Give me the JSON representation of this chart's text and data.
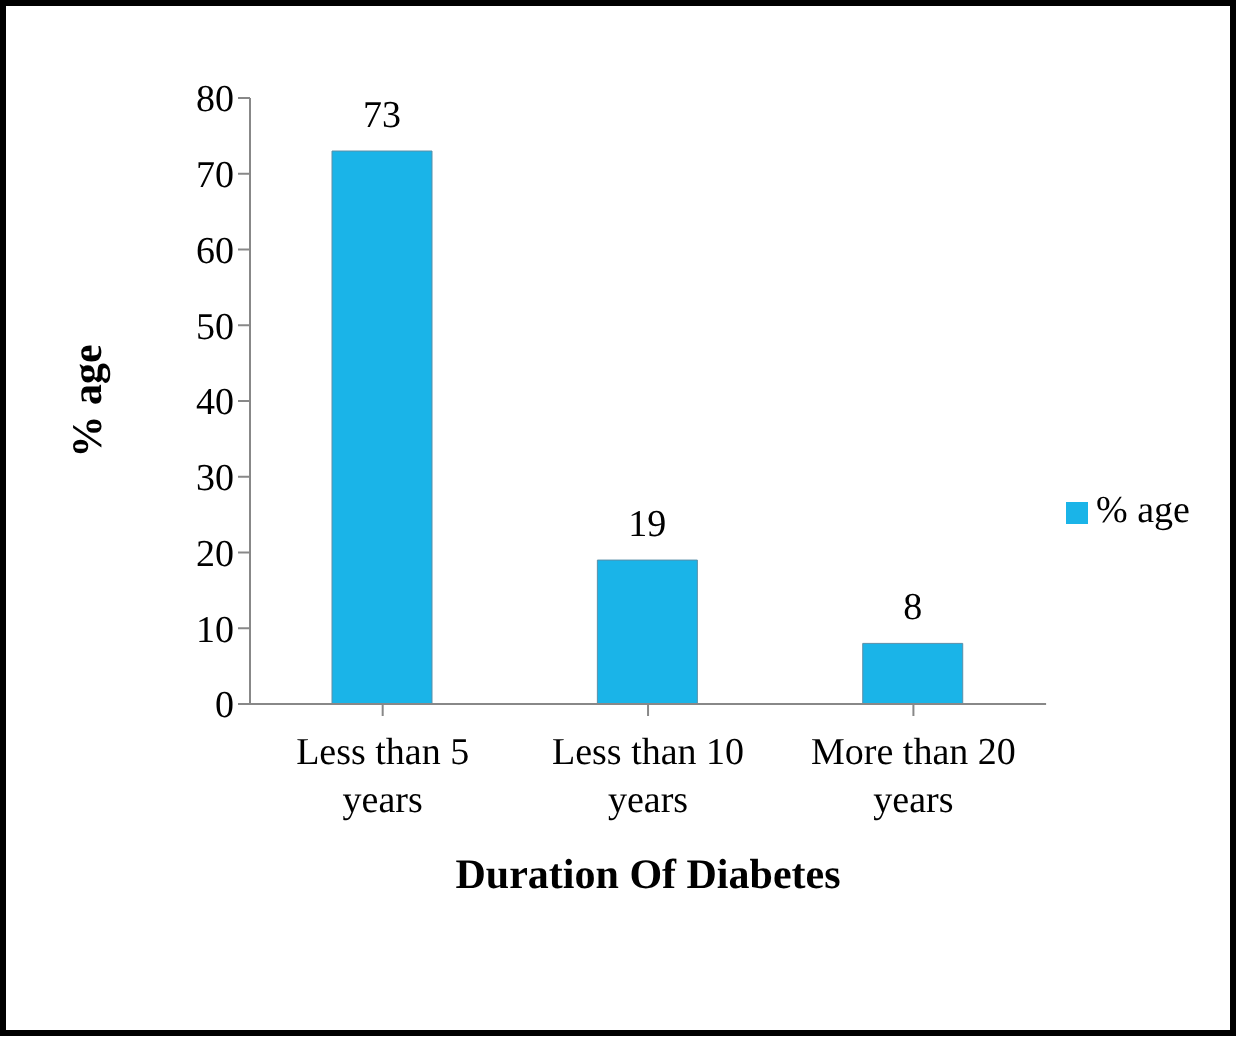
{
  "chart_data": {
    "type": "bar",
    "xlabel": "Duration Of  Diabetes",
    "ylabel": "% age",
    "categories": [
      "Less than 5 years",
      "Less than 10 years",
      "More than 20 years"
    ],
    "series": [
      {
        "name": "% age",
        "color": "#1ab4e8",
        "values": [
          73,
          19,
          8
        ]
      }
    ],
    "ylim": [
      0,
      80
    ],
    "yticks": [
      0,
      10,
      20,
      30,
      40,
      50,
      60,
      70,
      80
    ],
    "grid": false,
    "legend": "right",
    "data_labels": true
  }
}
